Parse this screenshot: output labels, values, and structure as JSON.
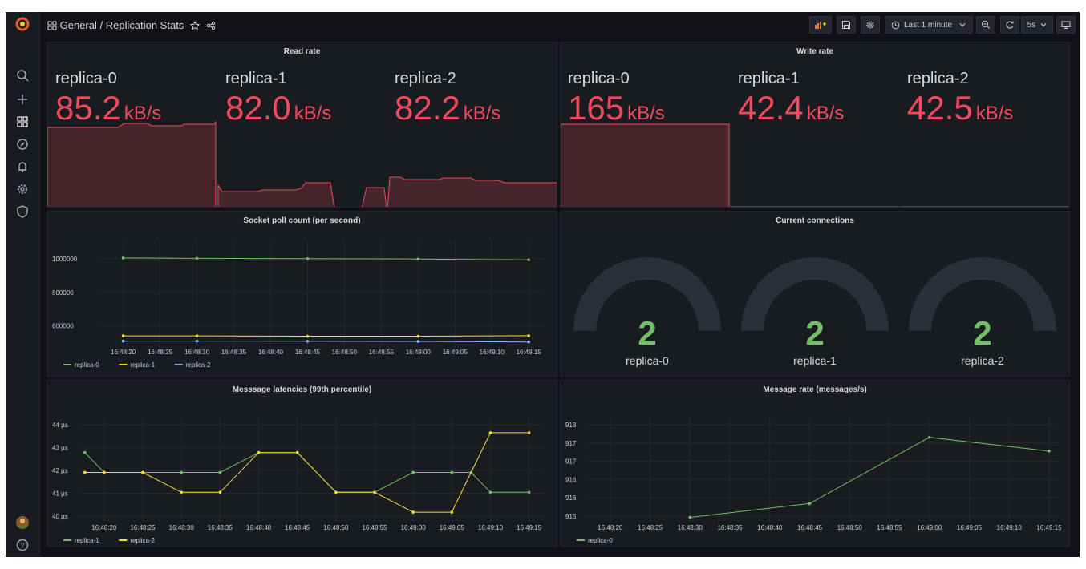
{
  "topbar": {
    "breadcrumb_folder": "General",
    "breadcrumb_separator": "/",
    "dashboard_title": "Replication Stats",
    "time_range": "Last 1 minute",
    "refresh_interval": "5s"
  },
  "panels": {
    "read_rate": {
      "title": "Read rate",
      "stats": [
        {
          "name": "replica-0",
          "value": "85.2",
          "unit": "kB/s"
        },
        {
          "name": "replica-1",
          "value": "82.0",
          "unit": "kB/s"
        },
        {
          "name": "replica-2",
          "value": "82.2",
          "unit": "kB/s"
        }
      ]
    },
    "write_rate": {
      "title": "Write rate",
      "stats": [
        {
          "name": "replica-0",
          "value": "165",
          "unit": "kB/s"
        },
        {
          "name": "replica-1",
          "value": "42.4",
          "unit": "kB/s"
        },
        {
          "name": "replica-2",
          "value": "42.5",
          "unit": "kB/s"
        }
      ]
    },
    "socket_poll": {
      "title": "Socket poll count (per second)"
    },
    "connections": {
      "title": "Current connections",
      "gauges": [
        {
          "name": "replica-0",
          "value": "2"
        },
        {
          "name": "replica-1",
          "value": "2"
        },
        {
          "name": "replica-2",
          "value": "2"
        }
      ]
    },
    "latencies": {
      "title": "Messsage latencies (99th percentile)"
    },
    "msg_rate": {
      "title": "Message rate (messages/s)"
    }
  },
  "colors": {
    "background": "#111217",
    "panel": "#181b1f",
    "red": "#f2495c",
    "green": "#73bf69",
    "yellow": "#fade2a",
    "blue": "#8ab8ff"
  },
  "icons": [
    "grafana-logo-icon",
    "search-icon",
    "plus-icon",
    "dashboards-icon",
    "explore-icon",
    "bell-icon",
    "gear-icon",
    "shield-icon",
    "avatar",
    "help-icon",
    "star-icon",
    "share-icon",
    "add-panel-icon",
    "save-icon",
    "settings-icon",
    "clock-icon",
    "chevron-down-icon",
    "zoom-out-icon",
    "refresh-icon",
    "tv-icon"
  ],
  "chart_data": [
    {
      "panel": "Socket poll count (per second)",
      "type": "line",
      "x": [
        "16:48:20",
        "16:48:25",
        "16:48:30",
        "16:48:35",
        "16:48:40",
        "16:48:45",
        "16:48:50",
        "16:48:55",
        "16:49:00",
        "16:49:05",
        "16:49:10",
        "16:49:15"
      ],
      "x_tick_labels": [
        "16:48:20",
        "16:48:25",
        "16:48:30",
        "16:48:35",
        "16:48:40",
        "16:48:45",
        "16:48:50",
        "16:48:55",
        "16:49:00",
        "16:49:05",
        "16:49:10",
        "16:49:15"
      ],
      "y_tick_labels": [
        "1000000",
        "800000",
        "600000"
      ],
      "ylim": [
        470000,
        1080000
      ],
      "legend_placement": "bottom-left",
      "series": [
        {
          "name": "replica-0",
          "color": "#73bf69",
          "points": [
            [
              "16:48:20",
              1004000
            ],
            [
              "16:48:30",
              1002000
            ],
            [
              "16:48:45",
              1000000
            ],
            [
              "16:49:00",
              998000
            ],
            [
              "16:49:15",
              993000
            ]
          ]
        },
        {
          "name": "replica-1",
          "color": "#fade2a",
          "points": [
            [
              "16:48:20",
              541000
            ],
            [
              "16:48:30",
              541000
            ],
            [
              "16:48:45",
              539000
            ],
            [
              "16:49:00",
              539000
            ],
            [
              "16:49:15",
              542000
            ]
          ]
        },
        {
          "name": "replica-2",
          "color": "#8ab8ff",
          "points": [
            [
              "16:48:20",
              510000
            ],
            [
              "16:48:30",
              510000
            ],
            [
              "16:48:45",
              509000
            ],
            [
              "16:49:00",
              508000
            ],
            [
              "16:49:15",
              505000
            ]
          ]
        }
      ]
    },
    {
      "panel": "Messsage latencies (99th percentile)",
      "type": "line",
      "x": [
        "16:48:20",
        "16:48:25",
        "16:48:30",
        "16:48:35",
        "16:48:40",
        "16:48:45",
        "16:48:50",
        "16:48:55",
        "16:49:00",
        "16:49:05",
        "16:49:10",
        "16:49:15"
      ],
      "x_tick_labels": [
        "16:48:20",
        "16:48:25",
        "16:48:30",
        "16:48:35",
        "16:48:40",
        "16:48:45",
        "16:48:50",
        "16:48:55",
        "16:49:00",
        "16:49:05",
        "16:49:10",
        "16:49:15"
      ],
      "y_tick_labels": [
        "44 µs",
        "43 µs",
        "42 µs",
        "41 µs",
        "40 µs"
      ],
      "y_unit": "µs",
      "ylim": [
        39.6,
        44.6
      ],
      "legend_placement": "bottom-left",
      "series": [
        {
          "name": "replica-1",
          "color": "#73bf69",
          "points": [
            [
              "16:48:17.5",
              43
            ],
            [
              "16:48:20",
              42
            ],
            [
              "16:48:25",
              42
            ],
            [
              "16:48:30",
              42
            ],
            [
              "16:48:35",
              42
            ],
            [
              "16:48:40",
              43
            ],
            [
              "16:48:45",
              43
            ],
            [
              "16:48:50",
              41
            ],
            [
              "16:48:55",
              41
            ],
            [
              "16:49:00",
              42
            ],
            [
              "16:49:05",
              42
            ],
            [
              "16:49:07.5",
              42
            ],
            [
              "16:49:10",
              41
            ],
            [
              "16:49:15",
              41
            ]
          ]
        },
        {
          "name": "replica-2",
          "color": "#fade2a",
          "points": [
            [
              "16:48:17.5",
              42
            ],
            [
              "16:48:20",
              42
            ],
            [
              "16:48:25",
              42
            ],
            [
              "16:48:30",
              41
            ],
            [
              "16:48:35",
              41
            ],
            [
              "16:48:40",
              43
            ],
            [
              "16:48:45",
              43
            ],
            [
              "16:48:50",
              41
            ],
            [
              "16:48:55",
              41
            ],
            [
              "16:49:00",
              40
            ],
            [
              "16:49:05",
              40
            ],
            [
              "16:49:10",
              44
            ],
            [
              "16:49:15",
              44
            ]
          ]
        }
      ]
    },
    {
      "panel": "Message rate (messages/s)",
      "type": "line",
      "x": [
        "16:48:20",
        "16:48:25",
        "16:48:30",
        "16:48:35",
        "16:48:40",
        "16:48:45",
        "16:48:50",
        "16:48:55",
        "16:49:00",
        "16:49:05",
        "16:49:10",
        "16:49:15"
      ],
      "x_tick_labels": [
        "16:48:20",
        "16:48:25",
        "16:48:30",
        "16:48:35",
        "16:48:40",
        "16:48:45",
        "16:48:50",
        "16:48:55",
        "16:49:00",
        "16:49:05",
        "16:49:10",
        "16:49:15"
      ],
      "y_tick_labels": [
        "918",
        "917",
        "917",
        "916",
        "916",
        "915"
      ],
      "ylim": [
        914.6,
        918.2
      ],
      "legend_placement": "bottom-left",
      "series": [
        {
          "name": "replica-0",
          "color": "#73bf69",
          "points": [
            [
              "16:48:30",
              914.7
            ],
            [
              "16:48:45",
              915.2
            ],
            [
              "16:49:00",
              917.6
            ],
            [
              "16:49:15",
              917.1
            ]
          ]
        }
      ]
    }
  ]
}
